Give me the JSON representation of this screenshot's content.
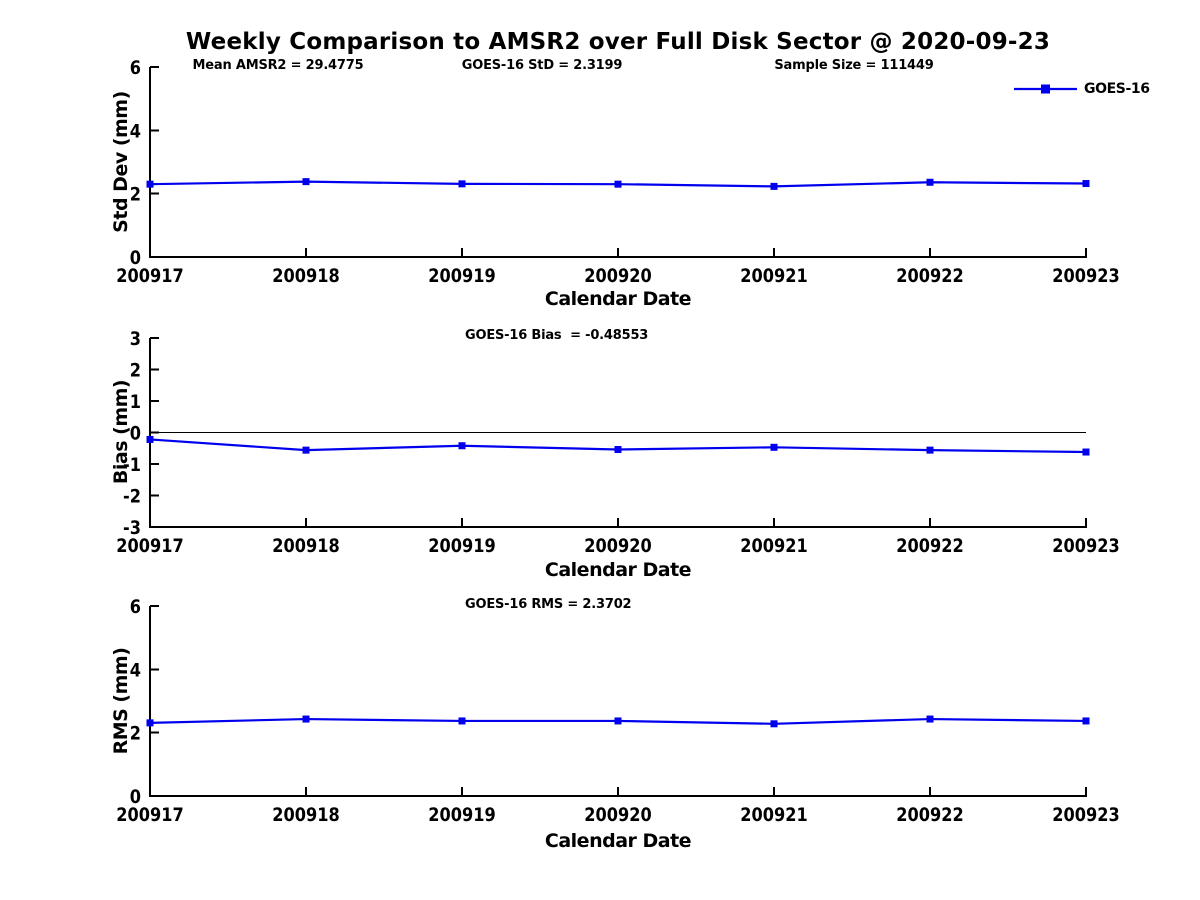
{
  "title": "Weekly Comparison to AMSR2 over Full Disk Sector @ 2020-09-23",
  "legend": {
    "label": "GOES-16",
    "color": "#0000EE",
    "marker": "square"
  },
  "colors": {
    "line": "#0000EE",
    "axis": "#000000",
    "zero_line": "#000000",
    "text": "#000000",
    "background": "#ffffff"
  },
  "chart_data": [
    {
      "type": "line",
      "panel": "std-dev",
      "annotations": [
        "Mean AMSR2 = 29.4775",
        "GOES-16 StD = 2.3199",
        "Sample Size = 111449"
      ],
      "categories": [
        "200917",
        "200918",
        "200919",
        "200920",
        "200921",
        "200922",
        "200923"
      ],
      "series": [
        {
          "name": "GOES-16",
          "color": "#0000EE",
          "marker": "square",
          "values": [
            2.3,
            2.38,
            2.31,
            2.3,
            2.23,
            2.36,
            2.32
          ]
        }
      ],
      "xlabel": "Calendar Date",
      "ylabel": "Std Dev (mm)",
      "ylim": [
        0,
        6
      ],
      "yticks": [
        0,
        2,
        4,
        6
      ],
      "zero_line": false,
      "grid": false,
      "legend_position": "top-right"
    },
    {
      "type": "line",
      "panel": "bias",
      "annotations": [
        "GOES-16 Bias  = -0.48553"
      ],
      "categories": [
        "200917",
        "200918",
        "200919",
        "200920",
        "200921",
        "200922",
        "200923"
      ],
      "series": [
        {
          "name": "GOES-16",
          "color": "#0000EE",
          "marker": "square",
          "values": [
            -0.22,
            -0.56,
            -0.42,
            -0.54,
            -0.47,
            -0.56,
            -0.62
          ]
        }
      ],
      "xlabel": "Calendar Date",
      "ylabel": "Bias (mm)",
      "ylim": [
        -3,
        3
      ],
      "yticks": [
        3,
        2,
        1,
        0,
        -1,
        -2,
        -3
      ],
      "zero_line": true,
      "grid": false
    },
    {
      "type": "line",
      "panel": "rms",
      "annotations": [
        "GOES-16 RMS = 2.3702"
      ],
      "categories": [
        "200917",
        "200918",
        "200919",
        "200920",
        "200921",
        "200922",
        "200923"
      ],
      "series": [
        {
          "name": "GOES-16",
          "color": "#0000EE",
          "marker": "square",
          "values": [
            2.31,
            2.43,
            2.37,
            2.37,
            2.28,
            2.43,
            2.37
          ]
        }
      ],
      "xlabel": "Calendar Date",
      "ylabel": "RMS (mm)",
      "ylim": [
        0,
        6
      ],
      "yticks": [
        0,
        2,
        4,
        6
      ],
      "zero_line": false,
      "grid": false
    }
  ]
}
